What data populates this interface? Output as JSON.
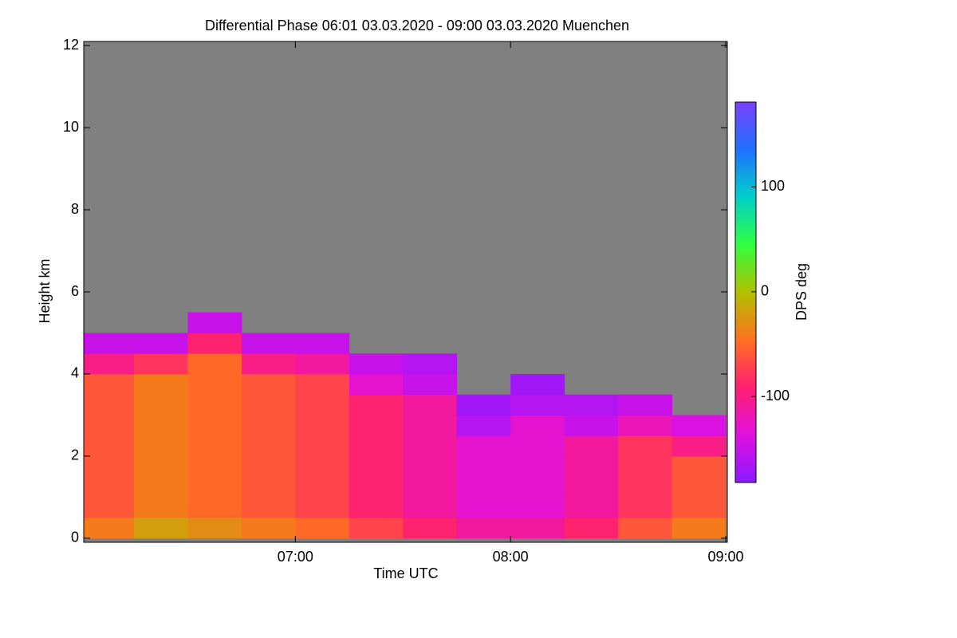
{
  "chart_data": {
    "type": "heatmap",
    "title": "Differential Phase   06:01 03.03.2020 - 09:00 03.03.2020 Muenchen",
    "x_label": "Time UTC",
    "y_label": "Height km",
    "colorbar_label": "DPS deg",
    "x_edges": [
      6.0167,
      6.25,
      6.5,
      6.75,
      7.0,
      7.25,
      7.5,
      7.75,
      8.0,
      8.25,
      8.5,
      8.75,
      9.0
    ],
    "y_edges": [
      0,
      0.5,
      1.0,
      1.5,
      2.0,
      2.5,
      3.0,
      3.5,
      4.0,
      4.5,
      5.0,
      5.5
    ],
    "z": [
      [
        -40,
        -20,
        -30,
        -40,
        -50,
        -70,
        -90,
        -110,
        -110,
        -90,
        -60,
        -40
      ],
      [
        -60,
        -40,
        -50,
        -60,
        -70,
        -90,
        -110,
        -130,
        -130,
        -110,
        -80,
        -60
      ],
      [
        -60,
        -40,
        -50,
        -60,
        -70,
        -90,
        -110,
        -130,
        -130,
        -110,
        -80,
        -60
      ],
      [
        -60,
        -40,
        -50,
        -60,
        -70,
        -90,
        -110,
        -130,
        -130,
        -110,
        -80,
        -60
      ],
      [
        -60,
        -40,
        -50,
        -60,
        -70,
        -90,
        -110,
        -130,
        -130,
        -110,
        -80,
        -100
      ],
      [
        -60,
        -40,
        -50,
        -60,
        -70,
        -90,
        -110,
        -160,
        -130,
        -150,
        -120,
        -140
      ],
      [
        -60,
        -40,
        -50,
        -60,
        -70,
        -90,
        -110,
        -170,
        -160,
        -160,
        -150,
        null
      ],
      [
        -60,
        -40,
        -50,
        -60,
        -70,
        -130,
        -150,
        null,
        -170,
        null,
        null,
        null
      ],
      [
        -100,
        -80,
        -50,
        -100,
        -110,
        -150,
        -160,
        null,
        null,
        null,
        null,
        null
      ],
      [
        -150,
        -150,
        -90,
        -150,
        -150,
        null,
        null,
        null,
        null,
        null,
        null,
        null
      ],
      [
        null,
        null,
        -150,
        null,
        null,
        null,
        null,
        null,
        null,
        null,
        null,
        null
      ]
    ],
    "xlim": [
      6.0167,
      9.0
    ],
    "xticks": [
      {
        "value": 7,
        "label": "07:00"
      },
      {
        "value": 8,
        "label": "08:00"
      },
      {
        "value": 9,
        "label": "09:00"
      }
    ],
    "ylim": [
      -0.1,
      12.1
    ],
    "yticks": [
      0,
      2,
      4,
      6,
      8,
      10,
      12
    ],
    "clim": [
      -182,
      181
    ],
    "cticks": [
      100,
      0,
      -100
    ],
    "colormap": [
      "#8a1aff",
      "#e010e0",
      "#ff2070",
      "#ff7020",
      "#b0c000",
      "#30ff40",
      "#00d0c8",
      "#2070ff",
      "#7a40ff"
    ],
    "background_color": "#808080"
  }
}
